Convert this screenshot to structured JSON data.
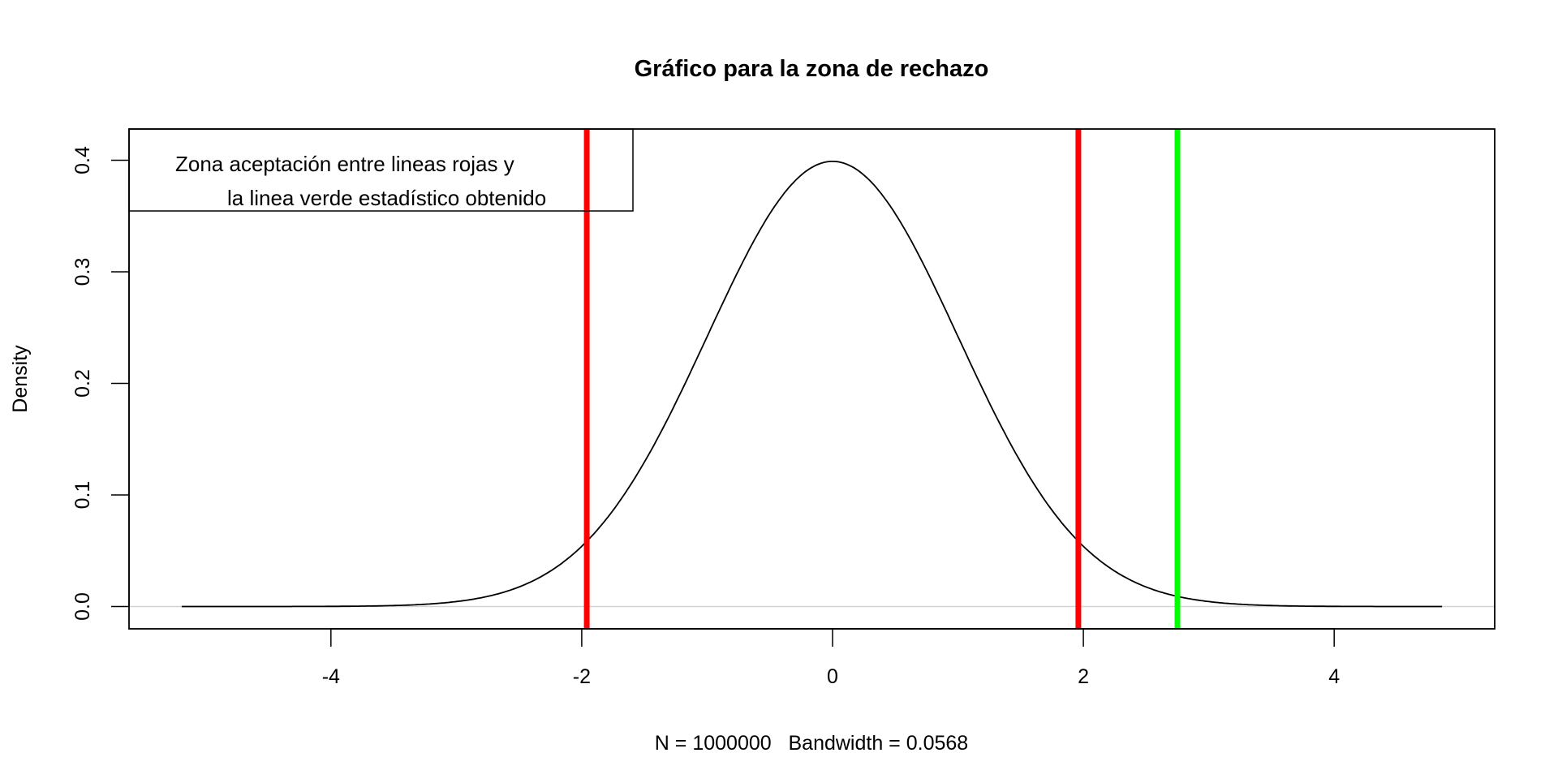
{
  "chart_data": {
    "type": "line",
    "title": "Gráfico para la zona de rechazo",
    "xlabel": "N = 1000000   Bandwidth = 0.0568",
    "ylabel": "Density",
    "xlim": [
      -5.61,
      5.28
    ],
    "ylim": [
      -0.02,
      0.428
    ],
    "x_ticks": [
      -4,
      -2,
      0,
      2,
      4
    ],
    "x_tick_labels": [
      "-4",
      "-2",
      "0",
      "2",
      "4"
    ],
    "y_ticks": [
      0.0,
      0.1,
      0.2,
      0.3,
      0.4
    ],
    "y_tick_labels": [
      "0.0",
      "0.1",
      "0.2",
      "0.3",
      "0.4"
    ],
    "grid": false,
    "density_curve": {
      "description_type": "kernel density (standard normal shape)",
      "x_range": [
        -5.19,
        4.86
      ],
      "peak": {
        "x": 0.0,
        "y": 0.399
      },
      "color": "#000000"
    },
    "baseline": {
      "y": 0,
      "color": "#d3d3d3"
    },
    "vertical_lines": [
      {
        "x": -1.96,
        "color": "#ff0000"
      },
      {
        "x": 1.96,
        "color": "#ff0000"
      },
      {
        "x": 2.75,
        "color": "#00ff00"
      }
    ],
    "legend": {
      "placement": "top-left",
      "lines": [
        "Zona aceptación entre lineas rojas y",
        "la linea verde estadístico obtenido"
      ]
    }
  }
}
